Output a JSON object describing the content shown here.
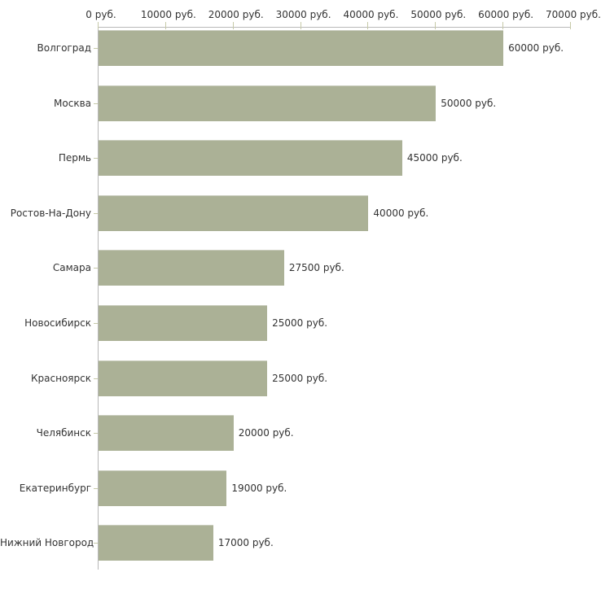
{
  "chart_data": {
    "type": "bar",
    "orientation": "horizontal",
    "title": "",
    "xlabel": "",
    "ylabel": "",
    "legend": "none",
    "grid": "off",
    "xlim": [
      0,
      70000
    ],
    "categories": [
      "Волгоград",
      "Москва",
      "Пермь",
      "Ростов-На-Дону",
      "Самара",
      "Новосибирск",
      "Красноярск",
      "Челябинск",
      "Екатеринбург",
      "Нижний Новгород"
    ],
    "values": [
      60000,
      50000,
      45000,
      40000,
      27500,
      25000,
      25000,
      20000,
      19000,
      17000
    ],
    "value_labels": [
      "60000 руб.",
      "50000 руб.",
      "45000 руб.",
      "40000 руб.",
      "27500 руб.",
      "25000 руб.",
      "25000 руб.",
      "20000 руб.",
      "19000 руб.",
      "17000 руб."
    ],
    "xticks": [
      {
        "value": 0,
        "label": "0 руб."
      },
      {
        "value": 10000,
        "label": "10000 руб."
      },
      {
        "value": 20000,
        "label": "20000 руб."
      },
      {
        "value": 30000,
        "label": "30000 руб."
      },
      {
        "value": 40000,
        "label": "40000 руб."
      },
      {
        "value": 50000,
        "label": "50000 руб."
      },
      {
        "value": 60000,
        "label": "60000 руб."
      },
      {
        "value": 70000,
        "label": "70000 руб."
      }
    ],
    "colors": {
      "bar_fill": "#abb196",
      "bar_edge": "#c9ccbd",
      "axis_line": "#b8b8b8",
      "tick_mark": "#c6c9a8",
      "label_text": "#333333",
      "background": "#ffffff"
    }
  }
}
